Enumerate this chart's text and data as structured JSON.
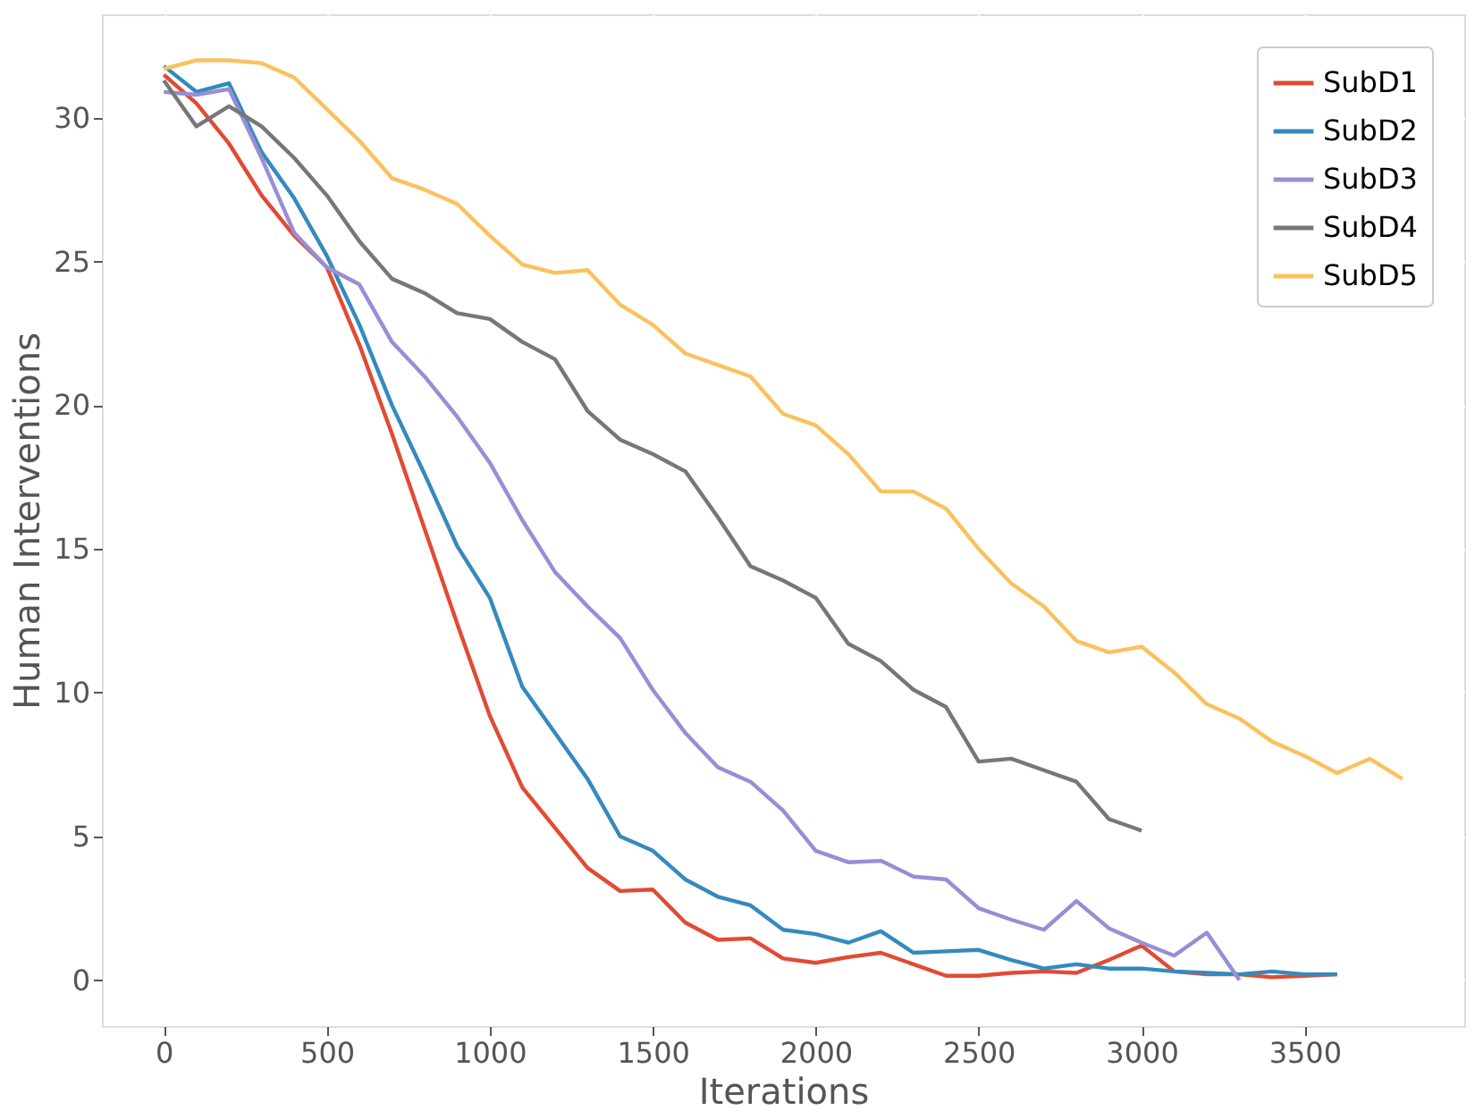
{
  "chart_data": {
    "type": "line",
    "xlabel": "Iterations",
    "ylabel": "Human Interventions",
    "xlim": [
      -190,
      3990
    ],
    "ylim": [
      -1.6,
      33.6
    ],
    "xticks": [
      0,
      500,
      1000,
      1500,
      2000,
      2500,
      3000,
      3500
    ],
    "yticks": [
      0,
      5,
      10,
      15,
      20,
      25,
      30
    ],
    "grid": true,
    "legend": "top right",
    "line_style": "solid",
    "marker": "none",
    "series": [
      {
        "name": "SubD1",
        "color": "#e24a33",
        "x": [
          0,
          100,
          200,
          300,
          400,
          500,
          600,
          700,
          800,
          900,
          1000,
          1100,
          1200,
          1300,
          1400,
          1500,
          1600,
          1700,
          1800,
          1900,
          2000,
          2100,
          2200,
          2300,
          2400,
          2500,
          2600,
          2700,
          2800,
          2900,
          3000,
          3100,
          3200,
          3300,
          3400,
          3500,
          3600
        ],
        "values": [
          31.5,
          30.5,
          29.1,
          27.3,
          25.9,
          24.8,
          22.1,
          19.0,
          15.7,
          12.4,
          9.2,
          6.7,
          5.3,
          3.9,
          3.1,
          3.15,
          2.0,
          1.4,
          1.45,
          0.75,
          0.6,
          0.8,
          0.95,
          0.55,
          0.15,
          0.15,
          0.25,
          0.3,
          0.25,
          0.7,
          1.2,
          0.3,
          0.2,
          0.2,
          0.1,
          0.15,
          0.2
        ]
      },
      {
        "name": "SubD2",
        "color": "#348abd",
        "x": [
          0,
          100,
          200,
          300,
          400,
          500,
          600,
          700,
          800,
          900,
          1000,
          1100,
          1200,
          1300,
          1400,
          1500,
          1600,
          1700,
          1800,
          1900,
          2000,
          2100,
          2200,
          2300,
          2400,
          2500,
          2600,
          2700,
          2800,
          2900,
          3000,
          3100,
          3200,
          3300,
          3400,
          3500,
          3600
        ],
        "values": [
          31.8,
          30.9,
          31.2,
          28.8,
          27.2,
          25.2,
          22.8,
          20.0,
          17.6,
          15.1,
          13.3,
          10.2,
          8.6,
          7.0,
          5.0,
          4.5,
          3.5,
          2.9,
          2.6,
          1.75,
          1.6,
          1.3,
          1.7,
          0.95,
          1.0,
          1.05,
          0.7,
          0.4,
          0.55,
          0.4,
          0.4,
          0.3,
          0.25,
          0.2,
          0.3,
          0.2,
          0.2
        ]
      },
      {
        "name": "SubD3",
        "color": "#988ed5",
        "x": [
          0,
          100,
          200,
          300,
          400,
          500,
          600,
          700,
          800,
          900,
          1000,
          1100,
          1200,
          1300,
          1400,
          1500,
          1600,
          1700,
          1800,
          1900,
          2000,
          2100,
          2200,
          2300,
          2400,
          2500,
          2600,
          2700,
          2800,
          2900,
          3000,
          3100,
          3200,
          3300
        ],
        "values": [
          30.9,
          30.8,
          31.0,
          28.6,
          26.0,
          24.8,
          24.2,
          22.2,
          21.0,
          19.6,
          18.0,
          16.0,
          14.2,
          13.0,
          11.9,
          10.1,
          8.6,
          7.4,
          6.9,
          5.9,
          4.5,
          4.1,
          4.15,
          3.6,
          3.5,
          2.5,
          2.1,
          1.75,
          2.75,
          1.8,
          1.3,
          0.85,
          1.65,
          0.0
        ]
      },
      {
        "name": "SubD4",
        "color": "#777777",
        "x": [
          0,
          100,
          200,
          300,
          400,
          500,
          600,
          700,
          800,
          900,
          1000,
          1100,
          1200,
          1300,
          1400,
          1500,
          1600,
          1700,
          1800,
          1900,
          2000,
          2100,
          2200,
          2300,
          2400,
          2500,
          2600,
          2700,
          2800,
          2900,
          3000
        ],
        "values": [
          31.3,
          29.7,
          30.4,
          29.7,
          28.6,
          27.3,
          25.7,
          24.4,
          23.9,
          23.2,
          23.0,
          22.2,
          21.6,
          19.8,
          18.8,
          18.3,
          17.7,
          16.1,
          14.4,
          13.9,
          13.3,
          11.7,
          11.1,
          10.1,
          9.5,
          7.6,
          7.7,
          7.3,
          6.9,
          5.6,
          5.2
        ]
      },
      {
        "name": "SubD5",
        "color": "#fbc15e",
        "x": [
          0,
          100,
          200,
          300,
          400,
          500,
          600,
          700,
          800,
          900,
          1000,
          1100,
          1200,
          1300,
          1400,
          1500,
          1600,
          1700,
          1800,
          1900,
          2000,
          2100,
          2200,
          2300,
          2400,
          2500,
          2600,
          2700,
          2800,
          2900,
          3000,
          3100,
          3200,
          3300,
          3400,
          3500,
          3600,
          3700,
          3800
        ],
        "values": [
          31.7,
          32.0,
          32.0,
          31.9,
          31.4,
          30.3,
          29.2,
          27.9,
          27.5,
          27.0,
          25.9,
          24.9,
          24.6,
          24.7,
          23.5,
          22.8,
          21.8,
          21.4,
          21.0,
          19.7,
          19.3,
          18.3,
          17.0,
          17.0,
          16.4,
          15.0,
          13.8,
          13.0,
          11.8,
          11.4,
          11.6,
          10.7,
          9.6,
          9.1,
          8.3,
          7.8,
          7.2,
          7.7,
          7.0
        ]
      }
    ]
  }
}
